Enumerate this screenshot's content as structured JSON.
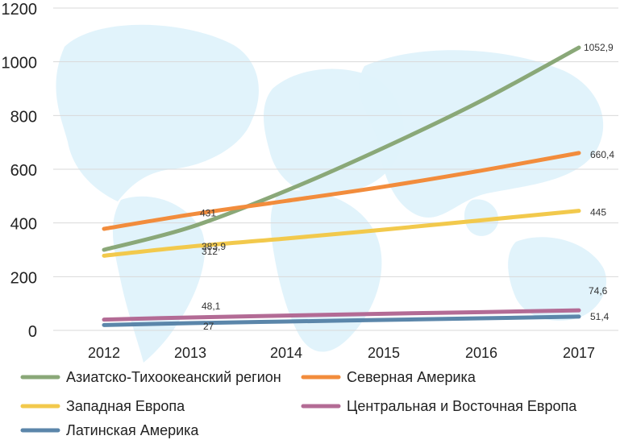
{
  "colors": {
    "map_fill": "#dff2fb",
    "grid": "#d9d9d9",
    "axis_text": "#222222",
    "label_text": "#333333"
  },
  "chart_data": {
    "type": "line",
    "title": "",
    "xlabel": "",
    "ylabel": "",
    "x": [
      2012,
      2013,
      2014,
      2015,
      2016,
      2017
    ],
    "ylim": [
      0,
      1200
    ],
    "yticks": [
      0,
      200,
      400,
      600,
      800,
      1000,
      1200
    ],
    "grid": true,
    "legend_position": "bottom",
    "series": [
      {
        "name": "Азиатско-Тихоокеанский регион",
        "color": "#8aa878",
        "values": [
          300,
          383.9,
          520,
          680,
          855,
          1052.9
        ],
        "labels": [
          {
            "index": 1,
            "text": "383,9"
          },
          {
            "index": 5,
            "text": "1052,9"
          }
        ]
      },
      {
        "name": "Северная Америка",
        "color": "#f28c3c",
        "values": [
          378,
          431,
          482,
          535,
          595,
          660.4
        ],
        "labels": [
          {
            "index": 1,
            "text": "431"
          },
          {
            "index": 5,
            "text": "660,4"
          }
        ]
      },
      {
        "name": "Западная Европа",
        "color": "#f2c94c",
        "values": [
          278,
          312,
          342,
          375,
          410,
          445
        ],
        "labels": [
          {
            "index": 1,
            "text": "312"
          },
          {
            "index": 5,
            "text": "445"
          }
        ]
      },
      {
        "name": "Центральная и Восточная Европа",
        "color": "#b36b95",
        "values": [
          40,
          48.1,
          55,
          62,
          68,
          74.6
        ],
        "labels": [
          {
            "index": 1,
            "text": "48,1"
          },
          {
            "index": 5,
            "text": "74,6"
          }
        ]
      },
      {
        "name": "Латинская Америка",
        "color": "#5b86aa",
        "values": [
          20,
          27,
          33,
          39,
          45,
          51.4
        ],
        "labels": [
          {
            "index": 1,
            "text": "27"
          },
          {
            "index": 5,
            "text": "51,4"
          }
        ]
      }
    ]
  }
}
